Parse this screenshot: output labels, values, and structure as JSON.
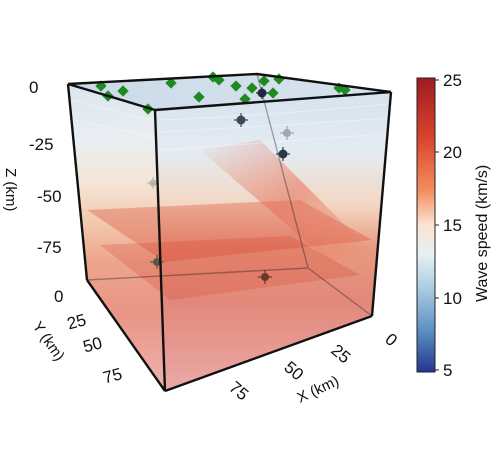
{
  "figure": {
    "axes": {
      "z": {
        "label": "Z (km)",
        "ticks": [
          "0",
          "-25",
          "-50",
          "-75"
        ]
      },
      "y": {
        "label": "Y (km)",
        "ticks": [
          "0",
          "25",
          "50",
          "75"
        ]
      },
      "x": {
        "label": "X (km)",
        "ticks": [
          "0",
          "25",
          "50",
          "75"
        ]
      }
    },
    "colorbar": {
      "label": "Wave speed (km/s)",
      "ticks": [
        "25",
        "20",
        "15",
        "10",
        "5"
      ],
      "colors": [
        "#9e1b23",
        "#d9432d",
        "#f38c5c",
        "#fbd9c0",
        "#e6f0f5",
        "#a8cbe0",
        "#5b8fc2",
        "#26358f"
      ]
    },
    "box_edge_color": "#111111",
    "station_color": "#1f8a1f",
    "event_color": "#333333"
  }
}
